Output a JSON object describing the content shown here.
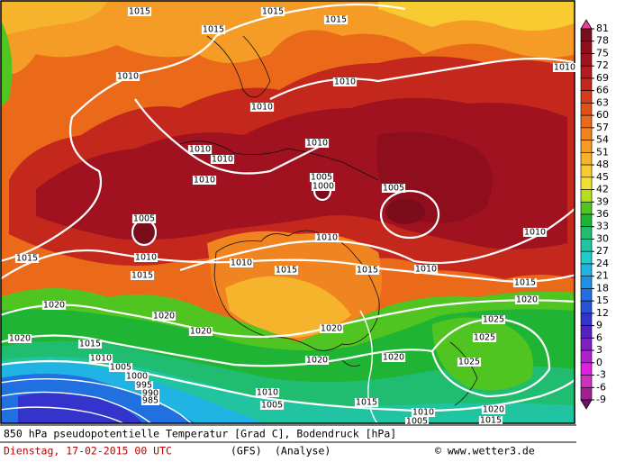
{
  "colorbar": {
    "ticks": [
      81,
      78,
      75,
      72,
      69,
      66,
      63,
      60,
      57,
      54,
      51,
      48,
      45,
      42,
      39,
      36,
      33,
      30,
      27,
      24,
      21,
      18,
      15,
      12,
      9,
      6,
      3,
      0,
      -3,
      -6,
      -9
    ],
    "colors": [
      "#e8409a",
      "#7a0c1c",
      "#8e0e1e",
      "#a01220",
      "#b41a1e",
      "#c4281c",
      "#d43c1a",
      "#e25218",
      "#ea6a1a",
      "#f08420",
      "#f49c26",
      "#f6b42c",
      "#f8cc30",
      "#f2e030",
      "#b8dc20",
      "#50c420",
      "#20b434",
      "#20bc70",
      "#20c4a0",
      "#20cccc",
      "#20b4e4",
      "#2090e4",
      "#2070e0",
      "#2852d8",
      "#3434cc",
      "#5422c0",
      "#8020c4",
      "#b020d0",
      "#e020e0",
      "#d030c0",
      "#a02090",
      "#701070"
    ]
  },
  "isobar_labels": [
    "1015",
    "1015",
    "1015",
    "1015",
    "1010",
    "1010",
    "1010",
    "1010",
    "1010",
    "1010",
    "1010",
    "1010",
    "1005",
    "1000",
    "1005",
    "1005",
    "1010",
    "1010",
    "1010",
    "1010",
    "1015",
    "1015",
    "1015",
    "1015",
    "1010",
    "1015",
    "1020",
    "1020",
    "1020",
    "1020",
    "1020",
    "1015",
    "1020",
    "1025",
    "1025",
    "1010",
    "1005",
    "1000",
    "1020",
    "1020",
    "1025",
    "1010",
    "1005",
    "1015",
    "1010",
    "1020",
    "1005",
    "1015",
    "995",
    "990",
    "985"
  ],
  "footer": {
    "title": "850 hPa pseudopotentielle Temperatur [Grad C], Bodendruck [hPa]",
    "date": "Dienstag, 17-02-2015  00 UTC",
    "model": "(GFS)",
    "analysis": "(Analyse)",
    "credit": "© www.wetter3.de"
  }
}
